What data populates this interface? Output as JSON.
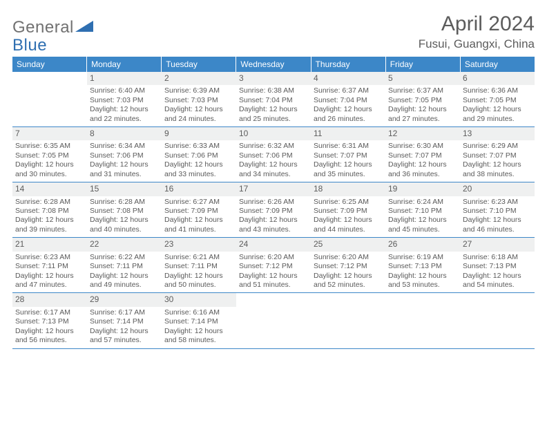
{
  "brand": {
    "part1": "General",
    "part2": "Blue"
  },
  "title": "April 2024",
  "location": "Fusui, Guangxi, China",
  "colors": {
    "header_bg": "#3c87c8",
    "header_fg": "#ffffff",
    "daynum_bg": "#eff0f0",
    "text": "#5a5a5a",
    "rule": "#3c87c8"
  },
  "weekdays": [
    "Sunday",
    "Monday",
    "Tuesday",
    "Wednesday",
    "Thursday",
    "Friday",
    "Saturday"
  ],
  "weeks": [
    [
      {
        "n": "",
        "sr": "",
        "ss": "",
        "dl": ""
      },
      {
        "n": "1",
        "sr": "Sunrise: 6:40 AM",
        "ss": "Sunset: 7:03 PM",
        "dl": "Daylight: 12 hours and 22 minutes."
      },
      {
        "n": "2",
        "sr": "Sunrise: 6:39 AM",
        "ss": "Sunset: 7:03 PM",
        "dl": "Daylight: 12 hours and 24 minutes."
      },
      {
        "n": "3",
        "sr": "Sunrise: 6:38 AM",
        "ss": "Sunset: 7:04 PM",
        "dl": "Daylight: 12 hours and 25 minutes."
      },
      {
        "n": "4",
        "sr": "Sunrise: 6:37 AM",
        "ss": "Sunset: 7:04 PM",
        "dl": "Daylight: 12 hours and 26 minutes."
      },
      {
        "n": "5",
        "sr": "Sunrise: 6:37 AM",
        "ss": "Sunset: 7:05 PM",
        "dl": "Daylight: 12 hours and 27 minutes."
      },
      {
        "n": "6",
        "sr": "Sunrise: 6:36 AM",
        "ss": "Sunset: 7:05 PM",
        "dl": "Daylight: 12 hours and 29 minutes."
      }
    ],
    [
      {
        "n": "7",
        "sr": "Sunrise: 6:35 AM",
        "ss": "Sunset: 7:05 PM",
        "dl": "Daylight: 12 hours and 30 minutes."
      },
      {
        "n": "8",
        "sr": "Sunrise: 6:34 AM",
        "ss": "Sunset: 7:06 PM",
        "dl": "Daylight: 12 hours and 31 minutes."
      },
      {
        "n": "9",
        "sr": "Sunrise: 6:33 AM",
        "ss": "Sunset: 7:06 PM",
        "dl": "Daylight: 12 hours and 33 minutes."
      },
      {
        "n": "10",
        "sr": "Sunrise: 6:32 AM",
        "ss": "Sunset: 7:06 PM",
        "dl": "Daylight: 12 hours and 34 minutes."
      },
      {
        "n": "11",
        "sr": "Sunrise: 6:31 AM",
        "ss": "Sunset: 7:07 PM",
        "dl": "Daylight: 12 hours and 35 minutes."
      },
      {
        "n": "12",
        "sr": "Sunrise: 6:30 AM",
        "ss": "Sunset: 7:07 PM",
        "dl": "Daylight: 12 hours and 36 minutes."
      },
      {
        "n": "13",
        "sr": "Sunrise: 6:29 AM",
        "ss": "Sunset: 7:07 PM",
        "dl": "Daylight: 12 hours and 38 minutes."
      }
    ],
    [
      {
        "n": "14",
        "sr": "Sunrise: 6:28 AM",
        "ss": "Sunset: 7:08 PM",
        "dl": "Daylight: 12 hours and 39 minutes."
      },
      {
        "n": "15",
        "sr": "Sunrise: 6:28 AM",
        "ss": "Sunset: 7:08 PM",
        "dl": "Daylight: 12 hours and 40 minutes."
      },
      {
        "n": "16",
        "sr": "Sunrise: 6:27 AM",
        "ss": "Sunset: 7:09 PM",
        "dl": "Daylight: 12 hours and 41 minutes."
      },
      {
        "n": "17",
        "sr": "Sunrise: 6:26 AM",
        "ss": "Sunset: 7:09 PM",
        "dl": "Daylight: 12 hours and 43 minutes."
      },
      {
        "n": "18",
        "sr": "Sunrise: 6:25 AM",
        "ss": "Sunset: 7:09 PM",
        "dl": "Daylight: 12 hours and 44 minutes."
      },
      {
        "n": "19",
        "sr": "Sunrise: 6:24 AM",
        "ss": "Sunset: 7:10 PM",
        "dl": "Daylight: 12 hours and 45 minutes."
      },
      {
        "n": "20",
        "sr": "Sunrise: 6:23 AM",
        "ss": "Sunset: 7:10 PM",
        "dl": "Daylight: 12 hours and 46 minutes."
      }
    ],
    [
      {
        "n": "21",
        "sr": "Sunrise: 6:23 AM",
        "ss": "Sunset: 7:11 PM",
        "dl": "Daylight: 12 hours and 47 minutes."
      },
      {
        "n": "22",
        "sr": "Sunrise: 6:22 AM",
        "ss": "Sunset: 7:11 PM",
        "dl": "Daylight: 12 hours and 49 minutes."
      },
      {
        "n": "23",
        "sr": "Sunrise: 6:21 AM",
        "ss": "Sunset: 7:11 PM",
        "dl": "Daylight: 12 hours and 50 minutes."
      },
      {
        "n": "24",
        "sr": "Sunrise: 6:20 AM",
        "ss": "Sunset: 7:12 PM",
        "dl": "Daylight: 12 hours and 51 minutes."
      },
      {
        "n": "25",
        "sr": "Sunrise: 6:20 AM",
        "ss": "Sunset: 7:12 PM",
        "dl": "Daylight: 12 hours and 52 minutes."
      },
      {
        "n": "26",
        "sr": "Sunrise: 6:19 AM",
        "ss": "Sunset: 7:13 PM",
        "dl": "Daylight: 12 hours and 53 minutes."
      },
      {
        "n": "27",
        "sr": "Sunrise: 6:18 AM",
        "ss": "Sunset: 7:13 PM",
        "dl": "Daylight: 12 hours and 54 minutes."
      }
    ],
    [
      {
        "n": "28",
        "sr": "Sunrise: 6:17 AM",
        "ss": "Sunset: 7:13 PM",
        "dl": "Daylight: 12 hours and 56 minutes."
      },
      {
        "n": "29",
        "sr": "Sunrise: 6:17 AM",
        "ss": "Sunset: 7:14 PM",
        "dl": "Daylight: 12 hours and 57 minutes."
      },
      {
        "n": "30",
        "sr": "Sunrise: 6:16 AM",
        "ss": "Sunset: 7:14 PM",
        "dl": "Daylight: 12 hours and 58 minutes."
      },
      {
        "n": "",
        "sr": "",
        "ss": "",
        "dl": ""
      },
      {
        "n": "",
        "sr": "",
        "ss": "",
        "dl": ""
      },
      {
        "n": "",
        "sr": "",
        "ss": "",
        "dl": ""
      },
      {
        "n": "",
        "sr": "",
        "ss": "",
        "dl": ""
      }
    ]
  ]
}
